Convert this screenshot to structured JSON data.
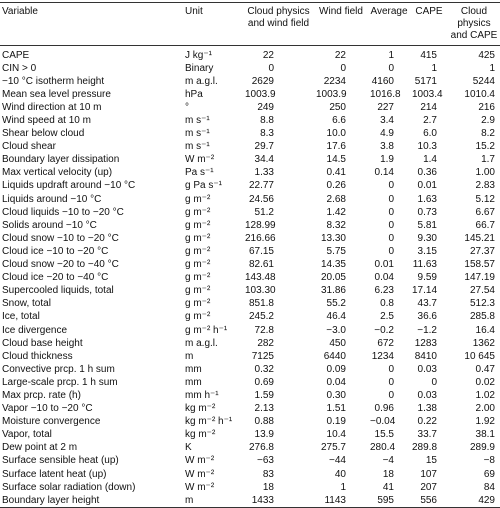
{
  "table": {
    "header": [
      "Variable",
      "Unit",
      "Cloud physics and wind field",
      "Wind field",
      "Average",
      "CAPE",
      "Cloud physics and CAPE"
    ],
    "rows": [
      [
        "CAPE",
        "J kg⁻¹",
        "22",
        "22",
        "1",
        "415",
        "425"
      ],
      [
        "CIN > 0",
        "Binary",
        "0",
        "0",
        "0",
        "1",
        "1"
      ],
      [
        "−10 °C isotherm height",
        "m a.g.l.",
        "2629",
        "2234",
        "4160",
        "5171",
        "5244"
      ],
      [
        "Mean sea level pressure",
        "hPa",
        "1003.9",
        "1003.9",
        "1016.8",
        "1003.4",
        "1010.4"
      ],
      [
        "Wind direction at 10 m",
        "°",
        "249",
        "250",
        "227",
        "214",
        "216"
      ],
      [
        "Wind speed at 10 m",
        "m s⁻¹",
        "8.8",
        "6.6",
        "3.4",
        "2.7",
        "2.9"
      ],
      [
        "Shear below cloud",
        "m s⁻¹",
        "8.3",
        "10.0",
        "4.9",
        "6.0",
        "8.2"
      ],
      [
        "Cloud shear",
        "m s⁻¹",
        "29.7",
        "17.6",
        "3.8",
        "10.3",
        "15.2"
      ],
      [
        "Boundary layer dissipation",
        "W m⁻²",
        "34.4",
        "14.5",
        "1.9",
        "1.4",
        "1.7"
      ],
      [
        "Max vertical velocity (up)",
        "Pa s⁻¹",
        "1.33",
        "0.41",
        "0.14",
        "0.36",
        "1.00"
      ],
      [
        "Liquids updraft around −10 °C",
        "g Pa s⁻¹",
        "22.77",
        "0.26",
        "0",
        "0.01",
        "2.83"
      ],
      [
        "Liquids around −10 °C",
        "g m⁻²",
        "24.56",
        "2.68",
        "0",
        "1.63",
        "5.12"
      ],
      [
        "Cloud liquids −10 to −20 °C",
        "g m⁻²",
        "51.2",
        "1.42",
        "0",
        "0.73",
        "6.67"
      ],
      [
        "Solids around −10 °C",
        "g m⁻²",
        "128.99",
        "8.32",
        "0",
        "5.81",
        "66.7"
      ],
      [
        "Cloud snow −10 to −20 °C",
        "g m⁻²",
        "216.66",
        "13.30",
        "0",
        "9.30",
        "145.21"
      ],
      [
        "Cloud ice −10 to −20 °C",
        "g m⁻²",
        "67.15",
        "5.75",
        "0",
        "3.15",
        "27.37"
      ],
      [
        "Cloud snow −20 to −40 °C",
        "g m⁻²",
        "82.61",
        "14.35",
        "0.01",
        "11.63",
        "158.57"
      ],
      [
        "Cloud ice −20 to −40 °C",
        "g m⁻²",
        "143.48",
        "20.05",
        "0.04",
        "9.59",
        "147.19"
      ],
      [
        "Supercooled liquids, total",
        "g m⁻²",
        "103.30",
        "31.86",
        "6.23",
        "17.14",
        "27.54"
      ],
      [
        "Snow, total",
        "g m⁻²",
        "851.8",
        "55.2",
        "0.8",
        "43.7",
        "512.3"
      ],
      [
        "Ice, total",
        "g m⁻²",
        "245.2",
        "46.4",
        "2.5",
        "36.6",
        "285.8"
      ],
      [
        "Ice divergence",
        "g m⁻² h⁻¹",
        "72.8",
        "−3.0",
        "−0.2",
        "−1.2",
        "16.4"
      ],
      [
        "Cloud base height",
        "m a.g.l.",
        "282",
        "450",
        "672",
        "1283",
        "1362"
      ],
      [
        "Cloud thickness",
        "m",
        "7125",
        "6440",
        "1234",
        "8410",
        "10 645"
      ],
      [
        "Convective prcp. 1 h sum",
        "mm",
        "0.32",
        "0.09",
        "0",
        "0.03",
        "0.47"
      ],
      [
        "Large-scale prcp. 1 h sum",
        "mm",
        "0.69",
        "0.04",
        "0",
        "0",
        "0.02"
      ],
      [
        "Max prcp. rate (h)",
        "mm h⁻¹",
        "1.59",
        "0.30",
        "0",
        "0.03",
        "1.02"
      ],
      [
        "Vapor −10 to −20 °C",
        "kg m⁻²",
        "2.13",
        "1.51",
        "0.96",
        "1.38",
        "2.00"
      ],
      [
        "Moisture convergence",
        "kg m⁻² h⁻¹",
        "0.88",
        "0.19",
        "−0.04",
        "0.22",
        "1.92"
      ],
      [
        "Vapor, total",
        "kg m⁻²",
        "13.9",
        "10.4",
        "15.5",
        "33.7",
        "38.1"
      ],
      [
        "Dew point at 2 m",
        "K",
        "276.8",
        "275.7",
        "280.4",
        "289.8",
        "289.9"
      ],
      [
        "Surface sensible heat (up)",
        "W m⁻²",
        "−63",
        "−44",
        "−4",
        "15",
        "−8"
      ],
      [
        "Surface latent heat (up)",
        "W m⁻²",
        "83",
        "40",
        "18",
        "107",
        "69"
      ],
      [
        "Surface solar radiation (down)",
        "W m⁻²",
        "18",
        "1",
        "41",
        "207",
        "84"
      ],
      [
        "Boundary layer height",
        "m",
        "1433",
        "1143",
        "595",
        "556",
        "429"
      ]
    ]
  }
}
